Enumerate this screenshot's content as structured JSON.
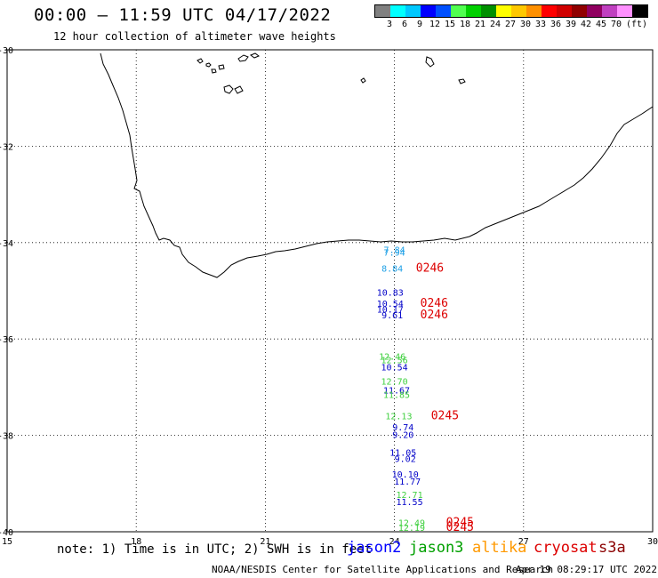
{
  "title": "00:00 – 11:59 UTC 04/17/2022",
  "subtitle": "12 hour collection of altimeter wave heights",
  "colorbar": {
    "colors": [
      "#808080",
      "#00ffff",
      "#00c8ff",
      "#0000ff",
      "#0050ff",
      "#50ff50",
      "#00d000",
      "#009000",
      "#ffff00",
      "#ffc800",
      "#ff9000",
      "#ff0000",
      "#d00000",
      "#900000",
      "#900060",
      "#c040c0",
      "#ff90ff",
      "#000000"
    ],
    "labels": [
      "3",
      "6",
      "9",
      "12",
      "15",
      "18",
      "21",
      "24",
      "27",
      "30",
      "33",
      "36",
      "39",
      "42",
      "45",
      "70",
      "(ft)"
    ]
  },
  "axes": {
    "lon_ticks": [
      "15",
      "18",
      "21",
      "24",
      "27",
      "30"
    ],
    "lat_ticks": [
      "-30",
      "-32",
      "-34",
      "-36",
      "-38",
      "-40"
    ]
  },
  "observations": [
    {
      "text": "7.84",
      "color": "#1ea0e6",
      "lon": 24.0,
      "lat": -34.22
    },
    {
      "text": "7.94",
      "color": "#1ea0e6",
      "lon": 24.0,
      "lat": -34.27
    },
    {
      "text": "8.84",
      "color": "#1ea0e6",
      "lon": 23.95,
      "lat": -34.6
    },
    {
      "text": "10.83",
      "color": "#0000c8",
      "lon": 23.9,
      "lat": -35.1
    },
    {
      "text": "10.54",
      "color": "#0000c8",
      "lon": 23.9,
      "lat": -35.33
    },
    {
      "text": "10.17",
      "color": "#0000c8",
      "lon": 23.9,
      "lat": -35.45
    },
    {
      "text": "9.61",
      "color": "#0000c8",
      "lon": 23.95,
      "lat": -35.57
    },
    {
      "text": "12.46",
      "color": "#40d040",
      "lon": 23.95,
      "lat": -36.43
    },
    {
      "text": "12.56",
      "color": "#40d040",
      "lon": 24.0,
      "lat": -36.5
    },
    {
      "text": "10.54",
      "color": "#0000c8",
      "lon": 24.0,
      "lat": -36.65
    },
    {
      "text": "12.70",
      "color": "#40d040",
      "lon": 24.0,
      "lat": -36.95
    },
    {
      "text": "11.67",
      "color": "#0000c8",
      "lon": 24.05,
      "lat": -37.13
    },
    {
      "text": "11.85",
      "color": "#40d040",
      "lon": 24.05,
      "lat": -37.22
    },
    {
      "text": "12.13",
      "color": "#40d040",
      "lon": 24.1,
      "lat": -37.67
    },
    {
      "text": "9.74",
      "color": "#0000c8",
      "lon": 24.2,
      "lat": -37.9
    },
    {
      "text": "9.20",
      "color": "#0000c8",
      "lon": 24.2,
      "lat": -38.05
    },
    {
      "text": "11.05",
      "color": "#0000c8",
      "lon": 24.2,
      "lat": -38.42
    },
    {
      "text": "9.02",
      "color": "#0000c8",
      "lon": 24.25,
      "lat": -38.55
    },
    {
      "text": "10.10",
      "color": "#0000c8",
      "lon": 24.25,
      "lat": -38.87
    },
    {
      "text": "11.77",
      "color": "#0000c8",
      "lon": 24.3,
      "lat": -39.02
    },
    {
      "text": "12.71",
      "color": "#40d040",
      "lon": 24.35,
      "lat": -39.3
    },
    {
      "text": "11.55",
      "color": "#0000c8",
      "lon": 24.35,
      "lat": -39.45
    },
    {
      "text": "12.49",
      "color": "#40d040",
      "lon": 24.4,
      "lat": -39.88
    },
    {
      "text": "12.19",
      "color": "#40d040",
      "lon": 24.4,
      "lat": -39.98
    }
  ],
  "pass_times": [
    {
      "text": "0246",
      "color": "#dd0000",
      "lon": 24.5,
      "lat": -34.6
    },
    {
      "text": "0246",
      "color": "#dd0000",
      "lon": 24.6,
      "lat": -35.33
    },
    {
      "text": "0246",
      "color": "#dd0000",
      "lon": 24.6,
      "lat": -35.57
    },
    {
      "text": "0245",
      "color": "#dd0000",
      "lon": 24.85,
      "lat": -37.67
    },
    {
      "text": "0245",
      "color": "#dd0000",
      "lon": 25.2,
      "lat": -39.88
    },
    {
      "text": "0245",
      "color": "#dd0000",
      "lon": 25.2,
      "lat": -39.98
    }
  ],
  "note": "note:  1) Time is in UTC; 2) SWH is in feet",
  "legend": [
    {
      "name": "jason2",
      "color": "#0000ff"
    },
    {
      "name": "jason3",
      "color": "#00a000"
    },
    {
      "name": "altika",
      "color": "#ff9900"
    },
    {
      "name": "cryosat",
      "color": "#dd0000"
    },
    {
      "name": "s3a",
      "color": "#8b0000"
    }
  ],
  "credit": {
    "org": "NOAA/NESDIS Center for Satellite Applications and Research",
    "time": "Apr 19 08:29:17 UTC 2022"
  }
}
